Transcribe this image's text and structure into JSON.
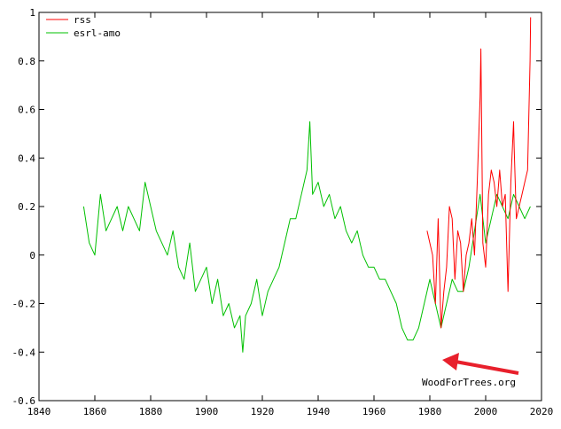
{
  "chart_data": {
    "type": "line",
    "xlim": [
      1840,
      2020
    ],
    "ylim": [
      -0.6,
      1
    ],
    "x_ticks": [
      "1840",
      "1860",
      "1880",
      "1900",
      "1920",
      "1940",
      "1960",
      "1980",
      "2000",
      "2020"
    ],
    "y_ticks": [
      "1",
      "0.8",
      "0.6",
      "0.4",
      "0.2",
      "0",
      "-0.2",
      "-0.4",
      "-0.6"
    ],
    "grid": false,
    "legend_position": "top-left",
    "series": [
      {
        "name": "rss",
        "color": "#ff0000",
        "x": [
          1979.0,
          1980.0,
          1981.0,
          1982.0,
          1983.0,
          1984.0,
          1985.0,
          1986.0,
          1987.0,
          1988.0,
          1989.0,
          1990.0,
          1991.0,
          1992.0,
          1993.0,
          1994.0,
          1995.0,
          1996.0,
          1997.0,
          1998.0,
          1998.3,
          1999.0,
          2000.0,
          2001.0,
          2002.0,
          2003.0,
          2004.0,
          2005.0,
          2006.0,
          2007.0,
          2008.0,
          2009.0,
          2010.0,
          2010.2,
          2011.0,
          2012.0,
          2013.0,
          2014.0,
          2015.0,
          2015.9,
          2016.1
        ],
        "y": [
          0.1,
          0.05,
          0.0,
          -0.2,
          0.15,
          -0.3,
          -0.15,
          -0.05,
          0.2,
          0.15,
          -0.1,
          0.1,
          0.05,
          -0.15,
          0.0,
          0.05,
          0.15,
          0.0,
          0.3,
          0.65,
          0.85,
          0.05,
          -0.05,
          0.25,
          0.35,
          0.3,
          0.2,
          0.35,
          0.2,
          0.25,
          -0.15,
          0.3,
          0.55,
          0.45,
          0.15,
          0.2,
          0.25,
          0.3,
          0.35,
          0.8,
          0.98
        ]
      },
      {
        "name": "esrl-amo",
        "color": "#00c000",
        "x": [
          1856,
          1858,
          1860,
          1862,
          1864,
          1866,
          1868,
          1870,
          1872,
          1874,
          1876,
          1878,
          1880,
          1882,
          1884,
          1886,
          1888,
          1890,
          1892,
          1894,
          1896,
          1898,
          1900,
          1902,
          1904,
          1906,
          1908,
          1910,
          1912,
          1913,
          1914,
          1916,
          1918,
          1920,
          1922,
          1924,
          1926,
          1928,
          1930,
          1932,
          1934,
          1936,
          1937,
          1938,
          1940,
          1942,
          1944,
          1946,
          1948,
          1950,
          1952,
          1954,
          1956,
          1958,
          1960,
          1962,
          1964,
          1966,
          1968,
          1970,
          1972,
          1974,
          1976,
          1978,
          1980,
          1982,
          1984,
          1986,
          1988,
          1990,
          1992,
          1994,
          1996,
          1998,
          2000,
          2002,
          2004,
          2006,
          2008,
          2010,
          2012,
          2014,
          2016
        ],
        "y": [
          0.2,
          0.05,
          0.0,
          0.25,
          0.1,
          0.15,
          0.2,
          0.1,
          0.2,
          0.15,
          0.1,
          0.3,
          0.2,
          0.1,
          0.05,
          0.0,
          0.1,
          -0.05,
          -0.1,
          0.05,
          -0.15,
          -0.1,
          -0.05,
          -0.2,
          -0.1,
          -0.25,
          -0.2,
          -0.3,
          -0.25,
          -0.4,
          -0.25,
          -0.2,
          -0.1,
          -0.25,
          -0.15,
          -0.1,
          -0.05,
          0.05,
          0.15,
          0.15,
          0.25,
          0.35,
          0.55,
          0.25,
          0.3,
          0.2,
          0.25,
          0.15,
          0.2,
          0.1,
          0.05,
          0.1,
          0.0,
          -0.05,
          -0.05,
          -0.1,
          -0.1,
          -0.15,
          -0.2,
          -0.3,
          -0.35,
          -0.35,
          -0.3,
          -0.2,
          -0.1,
          -0.2,
          -0.3,
          -0.2,
          -0.1,
          -0.15,
          -0.15,
          -0.05,
          0.1,
          0.25,
          0.05,
          0.15,
          0.25,
          0.2,
          0.15,
          0.25,
          0.2,
          0.15,
          0.2
        ]
      }
    ]
  },
  "annotation": {
    "text": "WoodForTrees.org",
    "color": "#e8202c"
  }
}
